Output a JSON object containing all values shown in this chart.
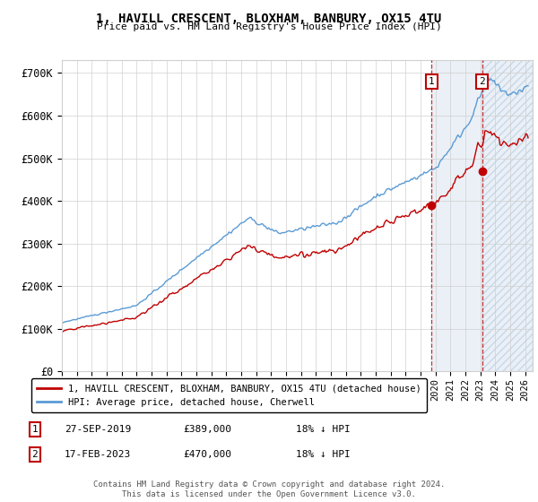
{
  "title": "1, HAVILL CRESCENT, BLOXHAM, BANBURY, OX15 4TU",
  "subtitle": "Price paid vs. HM Land Registry's House Price Index (HPI)",
  "ylabel_ticks": [
    "£0",
    "£100K",
    "£200K",
    "£300K",
    "£400K",
    "£500K",
    "£600K",
    "£700K"
  ],
  "ytick_values": [
    0,
    100000,
    200000,
    300000,
    400000,
    500000,
    600000,
    700000
  ],
  "ylim": [
    0,
    730000
  ],
  "xlim_start": 1995.0,
  "xlim_end": 2026.5,
  "sale1_date": 2019.74,
  "sale1_price": 389000,
  "sale1_label": "1",
  "sale2_date": 2023.12,
  "sale2_price": 470000,
  "sale2_label": "2",
  "legend_line1": "1, HAVILL CRESCENT, BLOXHAM, BANBURY, OX15 4TU (detached house)",
  "legend_line2": "HPI: Average price, detached house, Cherwell",
  "hpi_color": "#5b9bd5",
  "price_color": "#c00000",
  "shade_color": "#dce6f1",
  "grid_color": "#d0d0d0",
  "bg_color": "#ffffff"
}
